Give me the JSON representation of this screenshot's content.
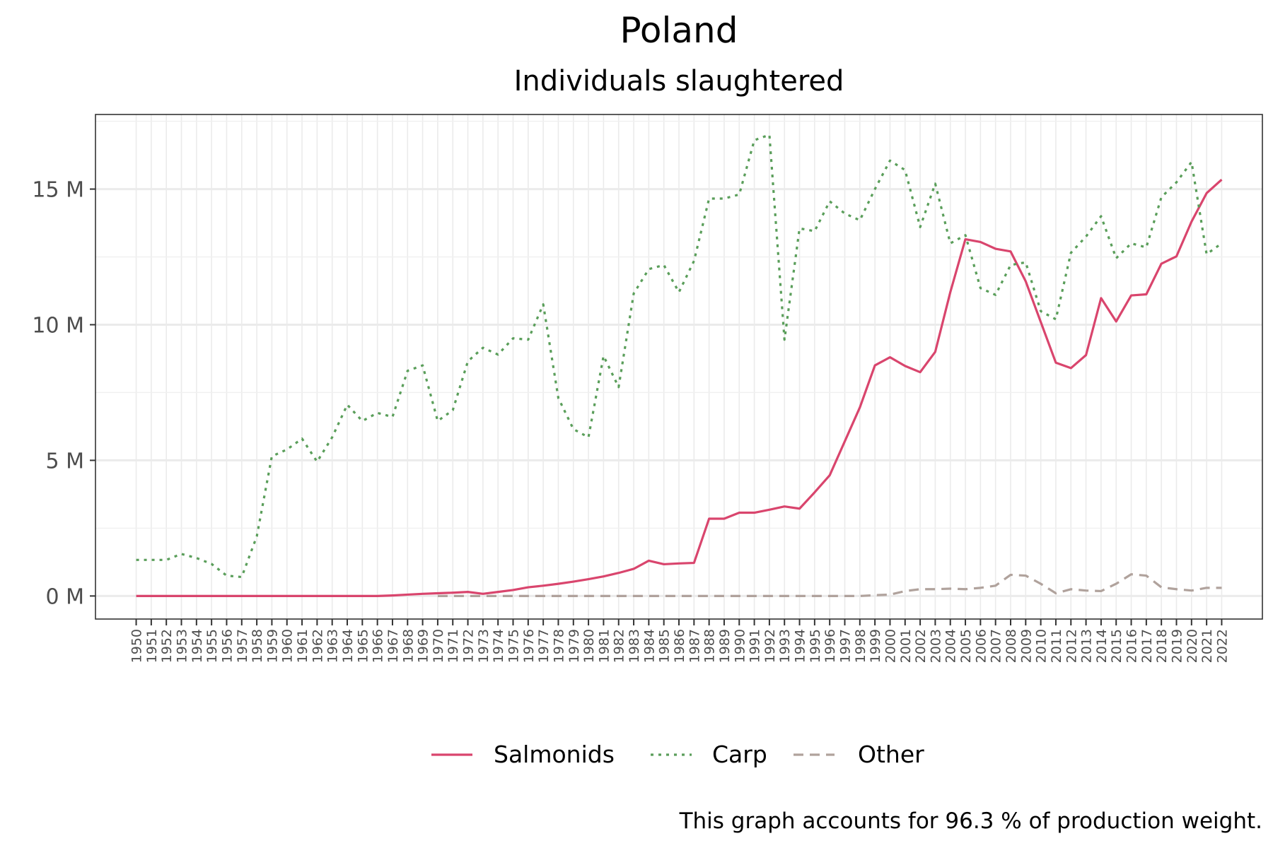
{
  "chart_data": {
    "type": "line",
    "title": "Poland",
    "subtitle": "Individuals slaughtered",
    "caption": "This graph accounts for 96.3 % of production weight.",
    "xlabel": "",
    "ylabel": "",
    "x_range": [
      1950,
      2022
    ],
    "ylim": [
      -0.85,
      17.75
    ],
    "y_ticks": [
      0,
      5,
      10,
      15
    ],
    "y_tick_labels": [
      "0 M",
      "5 M",
      "10 M",
      "15 M"
    ],
    "y_unit": "M",
    "grid": true,
    "legend_position": "bottom",
    "series": [
      {
        "name": "Salmonids",
        "color": "#d9456d",
        "dash": "solid",
        "x_start": 1950,
        "values": [
          0,
          0,
          0,
          0,
          0,
          0,
          0,
          0,
          0,
          0,
          0,
          0,
          0,
          0,
          0,
          0,
          0,
          0.02,
          0.05,
          0.08,
          0.1,
          0.12,
          0.15,
          0.08,
          0.15,
          0.22,
          0.32,
          0.38,
          0.45,
          0.53,
          0.62,
          0.72,
          0.85,
          1.0,
          1.3,
          1.17,
          1.2,
          1.22,
          2.85,
          2.85,
          3.07,
          3.07,
          3.18,
          3.3,
          3.22,
          3.82,
          4.45,
          5.7,
          6.95,
          8.5,
          8.8,
          8.48,
          8.25,
          9.0,
          11.2,
          13.15,
          13.05,
          12.8,
          12.7,
          11.6,
          10.1,
          8.6,
          8.4,
          8.88,
          10.98,
          10.12,
          11.08,
          11.12,
          12.25,
          12.52,
          13.8,
          14.85,
          15.35
        ]
      },
      {
        "name": "Carp",
        "color": "#5a9e5a",
        "dash": "dotted",
        "x_start": 1950,
        "values": [
          1.33,
          1.33,
          1.33,
          1.55,
          1.4,
          1.18,
          0.75,
          0.7,
          2.2,
          5.15,
          5.4,
          5.8,
          4.95,
          5.85,
          7.05,
          6.45,
          6.75,
          6.6,
          8.3,
          8.5,
          6.45,
          6.85,
          8.65,
          9.15,
          8.9,
          9.5,
          9.45,
          10.75,
          7.3,
          6.15,
          5.85,
          8.85,
          7.7,
          11.15,
          12.05,
          12.2,
          11.2,
          12.35,
          14.65,
          14.65,
          14.8,
          16.8,
          17.0,
          9.45,
          13.55,
          13.45,
          14.55,
          14.1,
          13.85,
          15.0,
          16.05,
          15.7,
          13.6,
          15.2,
          13.0,
          13.3,
          11.35,
          11.1,
          12.2,
          12.3,
          10.5,
          10.2,
          12.65,
          13.25,
          14.0,
          12.45,
          13.0,
          12.85,
          14.7,
          15.25,
          16.0,
          12.6,
          13.0
        ]
      },
      {
        "name": "Other",
        "color": "#b0a29c",
        "dash": "dashed",
        "x_start": 1970,
        "values": [
          0,
          0,
          0,
          0,
          0,
          0,
          0,
          0,
          0,
          0,
          0,
          0,
          0,
          0,
          0,
          0,
          0,
          0,
          0,
          0,
          0,
          0,
          0,
          0,
          0,
          0,
          0,
          0,
          0,
          0.03,
          0.05,
          0.18,
          0.25,
          0.25,
          0.27,
          0.25,
          0.3,
          0.38,
          0.78,
          0.75,
          0.45,
          0.1,
          0.25,
          0.2,
          0.18,
          0.45,
          0.8,
          0.75,
          0.32,
          0.25,
          0.2,
          0.3,
          0.3
        ]
      }
    ]
  }
}
